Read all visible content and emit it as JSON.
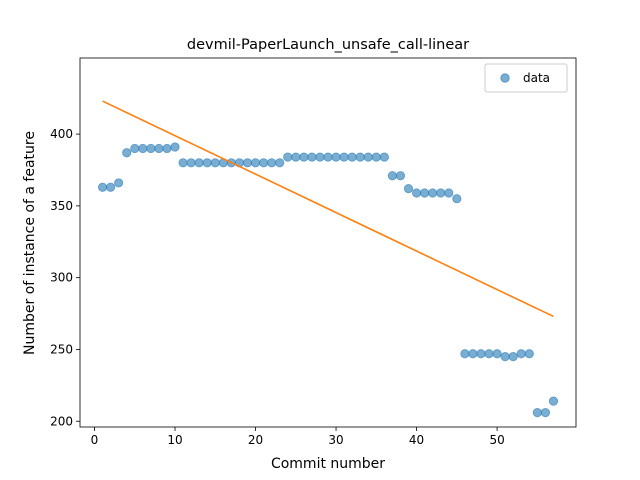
{
  "chart_data": {
    "type": "scatter",
    "title": "devmil-PaperLaunch_unsafe_call-linear",
    "xlabel": "Commit number",
    "ylabel": "Number of instance of a feature",
    "xlim": [
      -1.8,
      59.8
    ],
    "ylim": [
      196,
      453
    ],
    "xticks": [
      0,
      10,
      20,
      30,
      40,
      50
    ],
    "yticks": [
      200,
      250,
      300,
      350,
      400
    ],
    "legend": {
      "position": "top-right",
      "entries": [
        "data"
      ]
    },
    "colors": {
      "points": "#1f77b4",
      "fit": "#ff7f0e"
    },
    "series": [
      {
        "name": "data",
        "kind": "points",
        "x": [
          1,
          2,
          3,
          4,
          5,
          6,
          7,
          8,
          9,
          10,
          11,
          12,
          13,
          14,
          15,
          16,
          17,
          18,
          19,
          20,
          21,
          22,
          23,
          24,
          25,
          26,
          27,
          28,
          29,
          30,
          31,
          32,
          33,
          34,
          35,
          36,
          37,
          38,
          39,
          40,
          41,
          42,
          43,
          44,
          45,
          46,
          47,
          48,
          49,
          50,
          51,
          52,
          53,
          54,
          55,
          56,
          57
        ],
        "y": [
          363,
          363,
          366,
          387,
          390,
          390,
          390,
          390,
          390,
          391,
          380,
          380,
          380,
          380,
          380,
          380,
          380,
          380,
          380,
          380,
          380,
          380,
          380,
          384,
          384,
          384,
          384,
          384,
          384,
          384,
          384,
          384,
          384,
          384,
          384,
          384,
          371,
          371,
          362,
          359,
          359,
          359,
          359,
          359,
          355,
          247,
          247,
          247,
          247,
          247,
          245,
          245,
          247,
          247,
          206,
          206,
          214
        ]
      },
      {
        "kind": "fit-line",
        "x": [
          1,
          57
        ],
        "y": [
          423,
          273
        ]
      }
    ]
  }
}
